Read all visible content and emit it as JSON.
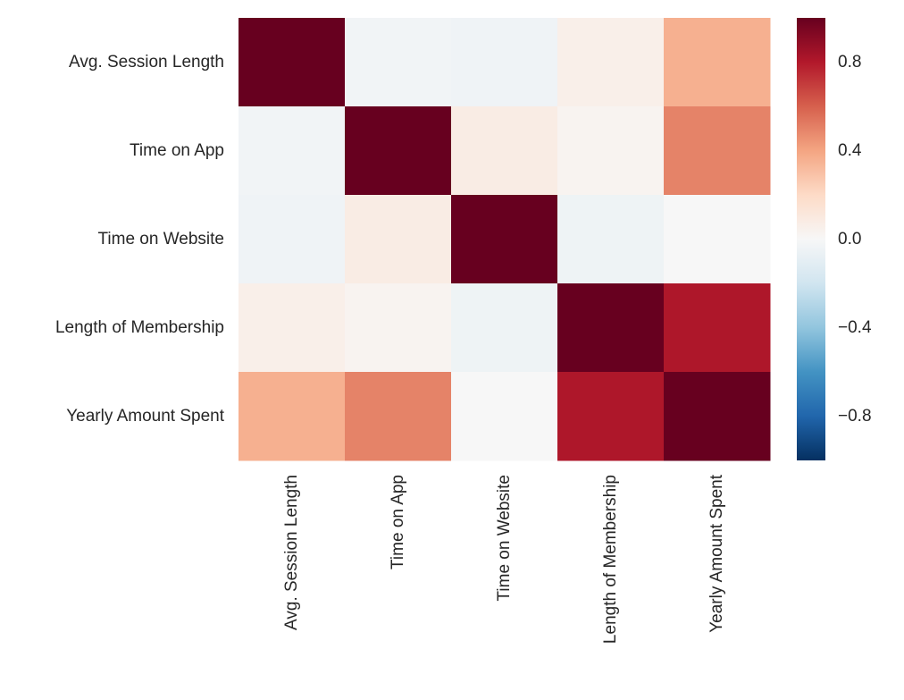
{
  "chart_data": {
    "type": "heatmap",
    "title": "",
    "xlabel": "",
    "ylabel": "",
    "rows": [
      "Avg. Session Length",
      "Time on App",
      "Time on Website",
      "Length of Membership",
      "Yearly Amount Spent"
    ],
    "columns": [
      "Avg. Session Length",
      "Time on App",
      "Time on Website",
      "Length of Membership",
      "Yearly Amount Spent"
    ],
    "values": [
      [
        1.0,
        -0.03,
        -0.04,
        0.06,
        0.36
      ],
      [
        -0.03,
        1.0,
        0.08,
        0.03,
        0.5
      ],
      [
        -0.04,
        0.08,
        1.0,
        -0.05,
        -0.0
      ],
      [
        0.06,
        0.03,
        -0.05,
        1.0,
        0.81
      ],
      [
        0.36,
        0.5,
        -0.0,
        0.81,
        1.0
      ]
    ],
    "vmin": -1,
    "vmax": 1,
    "colormap": "RdBu_r",
    "colorbar_ticks": [
      0.8,
      0.4,
      0.0,
      -0.4,
      -0.8
    ],
    "colorbar_tick_labels": [
      "0.8",
      "0.4",
      "0.0",
      "−0.4",
      "−0.8"
    ],
    "colors": {
      "low": "#053061",
      "mid": "#f7f7f7",
      "high": "#67001f"
    }
  }
}
